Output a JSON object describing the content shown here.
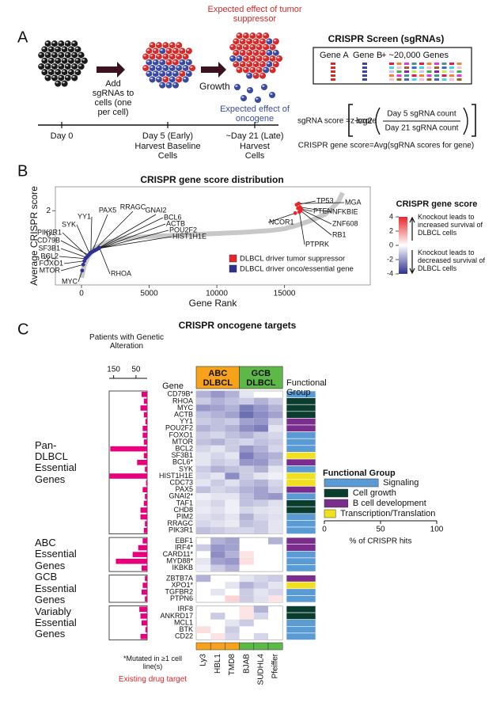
{
  "panel_a": {
    "label": "A",
    "top_caption": "Expected effect of tumor suppressor",
    "add_caption": "Add sgRNAs to cells (one per cell)",
    "growth": "Growth",
    "bottom_caption": "Expected effect of oncogene",
    "day0": "Day 0",
    "day5": "Day 5 (Early)",
    "day5_note": "Harvest Baseline Cells",
    "day21": "~Day 21 (Late)",
    "day21_note": "Harvest Cells",
    "screen_title": "CRISPR Screen (sgRNAs)",
    "gene_a": "Gene A",
    "gene_b": "Gene B",
    "more_genes": "+ ~20,000 Genes",
    "formula_lhs": "sgRNA score =z-score",
    "log": "log2",
    "numerator": "Day 5 sgRNA count",
    "denominator": "Day 21 sgRNA count",
    "gene_score": "CRISPR gene score=Avg(sgRNA scores for gene)",
    "suppressor_color": "#d42a2a",
    "oncogene_color": "#3a4aa0"
  },
  "panel_b": {
    "label": "B",
    "chart_data": {
      "type": "line",
      "title": "CRISPR gene score distribution",
      "x_label": "Gene Rank",
      "y_label": "Average CRISPR score",
      "xlim": [
        -1930,
        21340
      ],
      "ylim": [
        -4.2,
        4
      ],
      "xticks": [
        0,
        5000,
        10000,
        15000
      ],
      "yticks": [
        -2,
        0,
        2
      ],
      "curve": {
        "color": "#c8c8c8",
        "x": [
          0,
          200,
          500,
          1000,
          2000,
          3000,
          5000,
          8000,
          10000,
          12000,
          14000,
          15000,
          16000,
          17000,
          18000,
          18500,
          19000,
          19300
        ],
        "y": [
          -3.6,
          -2.6,
          -1.8,
          -1.1,
          -0.6,
          -0.35,
          -0.15,
          0,
          0.1,
          0.2,
          0.35,
          0.5,
          0.8,
          1.2,
          1.7,
          2.2,
          2.8,
          3.5
        ]
      },
      "series": [
        {
          "name": "DLBCL driver tumor suppressor",
          "color": "#e8262b",
          "labels": [
            "TP53",
            "PTEN",
            "NCOR1",
            "PTPRK",
            "RB1",
            "MGA",
            "NFKBIE",
            "ZNF608"
          ],
          "x": [
            15900,
            16000,
            15800,
            16100,
            16200,
            16050,
            16150,
            16250
          ],
          "y": [
            2.5,
            2.2,
            1.8,
            1.9,
            2.0,
            2.6,
            2.3,
            2.1
          ]
        },
        {
          "name": "DLBCL driver onco/essential gene",
          "color": "#2e3192",
          "labels": [
            "MYC",
            "MTOR",
            "FOXO1",
            "BCL2",
            "SF3B1",
            "PIK3R1",
            "CD79B",
            "SYK",
            "YY1",
            "PAX5",
            "RRAGC",
            "GNAI2",
            "BCL6",
            "ACTB",
            "POU2F2",
            "HIST1H1E",
            "RHOA"
          ],
          "x": [
            50,
            130,
            210,
            290,
            370,
            450,
            530,
            610,
            690,
            770,
            850,
            930,
            1010,
            1090,
            1170,
            1250,
            1330
          ],
          "y": [
            -3.0,
            -2.5,
            -2.2,
            -2.0,
            -1.9,
            -1.8,
            -1.7,
            -1.6,
            -1.5,
            -1.45,
            -1.4,
            -1.35,
            -1.3,
            -1.25,
            -1.2,
            -1.15,
            -1.1
          ]
        }
      ],
      "colorscale": {
        "title": "CRISPR gene score",
        "lim": [
          -4,
          4
        ],
        "ticks": [
          4,
          2,
          0,
          -2,
          -4
        ],
        "high_color": "#e8262b",
        "low_color": "#2e3192",
        "high_note": "Knockout leads to increased survival of DLBCL cells",
        "low_note": "Knockout leads to decreased survival of DLBCL cells"
      }
    }
  },
  "panel_c": {
    "label": "C",
    "title": "CRISPR oncogene targets",
    "gene_header": "Gene",
    "group_header": "Functional Group",
    "patients": {
      "title": "Patients with Genetic Alteration",
      "xlim": [
        0,
        170
      ],
      "xticks": [
        150,
        50
      ],
      "color": "#e6007e"
    },
    "subtypes": [
      {
        "name": "ABC DLBCL",
        "color": "#f7a21b",
        "cell_lines": [
          "Ly3",
          "HBL1",
          "TMD8"
        ]
      },
      {
        "name": "GCB DLBCL",
        "color": "#5cb947",
        "cell_lines": [
          "BJAB",
          "SUDHL4",
          "Pfeiffer"
        ]
      }
    ],
    "drug_color": "#e0262b",
    "mutated_note": "*Mutated in ≥1 cell line(s)",
    "drug_note": "Existing drug target",
    "blocks": [
      {
        "label": "Pan-DLBCL Essential Genes",
        "genes": [
          {
            "name": "CD79B*",
            "patients": 25,
            "group": "Signaling",
            "drug_target": false,
            "scores": [
              -1.5,
              -2.0,
              -1.5,
              -0.5,
              null,
              null
            ]
          },
          {
            "name": "RHOA",
            "patients": 15,
            "group": "Cell growth",
            "drug_target": false,
            "scores": [
              -1.0,
              -1.5,
              -1.2,
              -1.0,
              -1.5,
              -1.0
            ]
          },
          {
            "name": "MYC",
            "patients": 30,
            "group": "Cell growth",
            "drug_target": false,
            "scores": [
              -2.0,
              -1.8,
              -1.5,
              -2.5,
              -2.0,
              -1.5
            ]
          },
          {
            "name": "ACTB",
            "patients": 15,
            "group": "Cell growth",
            "drug_target": false,
            "scores": [
              -1.2,
              -1.5,
              -1.8,
              -2.8,
              -2.2,
              -1.8
            ]
          },
          {
            "name": "YY1",
            "patients": 8,
            "group": "B cell development",
            "drug_target": false,
            "scores": [
              -1.0,
              -1.2,
              -1.0,
              -1.8,
              -2.0,
              -1.0
            ]
          },
          {
            "name": "POU2F2",
            "patients": 20,
            "group": "B cell development",
            "drug_target": false,
            "scores": [
              -1.5,
              -1.2,
              -1.5,
              -2.2,
              -2.5,
              -0.5
            ]
          },
          {
            "name": "FOXO1",
            "patients": 20,
            "group": "Signaling",
            "drug_target": false,
            "scores": [
              -1.0,
              -0.8,
              -1.2,
              -1.5,
              -1.0,
              -0.8
            ]
          },
          {
            "name": "MTOR",
            "patients": 15,
            "group": "Signaling",
            "drug_target": true,
            "scores": [
              -1.2,
              -1.5,
              -1.0,
              -0.8,
              -1.2,
              -1.0
            ]
          },
          {
            "name": "BCL2",
            "patients": 165,
            "group": "Signaling",
            "drug_target": true,
            "scores": [
              -0.8,
              -0.5,
              -1.0,
              -2.0,
              -1.5,
              -0.8
            ]
          },
          {
            "name": "SF3B1",
            "patients": 15,
            "group": "Transcription/Translation",
            "drug_target": true,
            "scores": [
              -0.5,
              -0.8,
              -0.5,
              -2.5,
              -1.8,
              -1.5
            ]
          },
          {
            "name": "BCL6*",
            "patients": 45,
            "group": "B cell development",
            "drug_target": false,
            "scores": [
              -0.5,
              -1.0,
              -0.8,
              -2.0,
              -2.0,
              -1.2
            ]
          },
          {
            "name": "SYK",
            "patients": 10,
            "group": "Signaling",
            "drug_target": true,
            "scores": [
              -1.0,
              -1.5,
              -1.2,
              -1.0,
              -1.5,
              -0.5
            ]
          },
          {
            "name": "HIST1H1E",
            "patients": 168,
            "group": "Transcription/Translation",
            "drug_target": false,
            "scores": [
              -0.8,
              -0.5,
              -2.2,
              -1.0,
              -0.5,
              -0.3
            ]
          },
          {
            "name": "CDC73",
            "patients": 5,
            "group": "Transcription/Translation",
            "drug_target": false,
            "scores": [
              -0.5,
              -1.0,
              -0.6,
              -1.2,
              -1.5,
              -0.8
            ]
          },
          {
            "name": "PAX5",
            "patients": 20,
            "group": "B cell development",
            "drug_target": false,
            "scores": [
              -1.2,
              -0.8,
              -1.0,
              -1.5,
              -1.8,
              -1.0
            ]
          },
          {
            "name": "GNAI2*",
            "patients": 10,
            "group": "Signaling",
            "drug_target": false,
            "scores": [
              -0.3,
              -0.5,
              -0.5,
              -1.2,
              -1.8,
              -2.0
            ]
          },
          {
            "name": "TAF1",
            "patients": 15,
            "group": "Cell growth",
            "drug_target": false,
            "scores": [
              -0.5,
              -0.8,
              -0.3,
              -1.2,
              -1.0,
              -0.6
            ]
          },
          {
            "name": "CHD8",
            "patients": 30,
            "group": "Cell growth",
            "drug_target": false,
            "scores": [
              -0.4,
              -0.6,
              -0.3,
              -0.8,
              -0.6,
              -0.5
            ]
          },
          {
            "name": "PIM2",
            "patients": 30,
            "group": "Signaling",
            "drug_target": true,
            "scores": [
              -0.6,
              -0.8,
              -0.5,
              -1.5,
              -0.8,
              -0.6
            ]
          },
          {
            "name": "RRAGC",
            "patients": 10,
            "group": "Signaling",
            "drug_target": false,
            "scores": [
              -0.8,
              -0.6,
              -0.4,
              -1.2,
              -1.0,
              -0.5
            ]
          },
          {
            "name": "PIK3R1",
            "patients": 15,
            "group": "Signaling",
            "drug_target": true,
            "scores": [
              -1.2,
              -1.0,
              -0.8,
              -0.8,
              -1.0,
              -0.5
            ]
          }
        ]
      },
      {
        "label": "ABC Essential Genes",
        "genes": [
          {
            "name": "EBF1",
            "patients": 20,
            "group": "B cell development",
            "drug_target": false,
            "scores": [
              null,
              -1.5,
              -1.8,
              null,
              null,
              -1.5
            ]
          },
          {
            "name": "IRF4*",
            "patients": 40,
            "group": "B cell development",
            "drug_target": false,
            "scores": [
              -1.0,
              -2.0,
              -1.8,
              null,
              null,
              null
            ]
          },
          {
            "name": "CARD11*",
            "patients": 65,
            "group": "Signaling",
            "drug_target": false,
            "scores": [
              null,
              -2.2,
              -1.5,
              0.5,
              null,
              null
            ]
          },
          {
            "name": "MYD88*",
            "patients": 140,
            "group": "Signaling",
            "drug_target": false,
            "scores": [
              -0.5,
              -1.8,
              -2.0,
              0.6,
              null,
              null
            ]
          },
          {
            "name": "IKBKB",
            "patients": 25,
            "group": "Signaling",
            "drug_target": false,
            "scores": [
              -0.3,
              -1.0,
              -1.5,
              null,
              null,
              null
            ]
          }
        ]
      },
      {
        "label": "GCB Essential Genes",
        "genes": [
          {
            "name": "ZBTB7A",
            "patients": 10,
            "group": "B cell development",
            "drug_target": false,
            "scores": [
              -1.5,
              null,
              null,
              -0.5,
              -0.8,
              -1.0
            ]
          },
          {
            "name": "XPO1*",
            "patients": 20,
            "group": "Transcription/Translation",
            "drug_target": true,
            "scores": [
              null,
              null,
              -0.5,
              -1.5,
              -1.0,
              -0.5
            ]
          },
          {
            "name": "TGFBR2",
            "patients": 25,
            "group": "Signaling",
            "drug_target": false,
            "scores": [
              null,
              -0.5,
              null,
              -1.0,
              -0.5,
              -0.8
            ]
          },
          {
            "name": "PTPN6",
            "patients": 10,
            "group": "Signaling",
            "drug_target": false,
            "scores": [
              null,
              null,
              0.8,
              -1.0,
              -0.6,
              0.5
            ]
          }
        ]
      },
      {
        "label": "Variably Essential Genes",
        "genes": [
          {
            "name": "IRF8",
            "patients": 35,
            "group": "Cell growth",
            "drug_target": false,
            "scores": [
              null,
              null,
              null,
              0.5,
              -1.5,
              null
            ]
          },
          {
            "name": "ANKRD17",
            "patients": 30,
            "group": "Cell growth",
            "drug_target": false,
            "scores": [
              null,
              -1.0,
              null,
              0.5,
              -0.8,
              null
            ]
          },
          {
            "name": "MCL1",
            "patients": 25,
            "group": "Signaling",
            "drug_target": true,
            "scores": [
              null,
              null,
              -0.5,
              -1.0,
              null,
              null
            ]
          },
          {
            "name": "BTK",
            "patients": 8,
            "group": "Signaling",
            "drug_target": true,
            "scores": [
              0.6,
              null,
              -1.0,
              null,
              null,
              null
            ]
          },
          {
            "name": "CD22",
            "patients": 30,
            "group": "Signaling",
            "drug_target": false,
            "scores": [
              null,
              0.5,
              -0.8,
              null,
              -0.8,
              null
            ]
          }
        ]
      }
    ],
    "functional_groups": {
      "title": "Functional Group",
      "axis_title": "% of CRISPR hits",
      "xlim": [
        0,
        100
      ],
      "xticks": [
        0,
        50,
        100
      ],
      "groups": [
        {
          "name": "Signaling",
          "color": "#5b9bd5",
          "percent": 48
        },
        {
          "name": "Cell growth",
          "color": "#0b3d2e",
          "percent": 21
        },
        {
          "name": "B cell development",
          "color": "#7b2d8e",
          "percent": 21
        },
        {
          "name": "Transcription/Translation",
          "color": "#f0e020",
          "percent": 10
        }
      ]
    }
  }
}
